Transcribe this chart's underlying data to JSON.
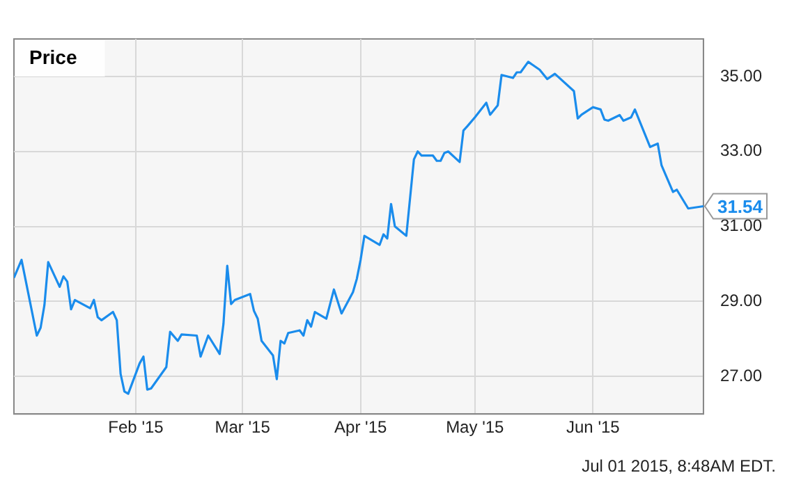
{
  "chart_data": {
    "type": "line",
    "title": "Price",
    "x": [
      "2014-12-31",
      "2015-01-02",
      "2015-01-06",
      "2015-01-07",
      "2015-01-08",
      "2015-01-09",
      "2015-01-12",
      "2015-01-13",
      "2015-01-14",
      "2015-01-15",
      "2015-01-16",
      "2015-01-20",
      "2015-01-21",
      "2015-01-22",
      "2015-01-23",
      "2015-01-26",
      "2015-01-27",
      "2015-01-28",
      "2015-01-29",
      "2015-01-30",
      "2015-02-02",
      "2015-02-03",
      "2015-02-04",
      "2015-02-05",
      "2015-02-09",
      "2015-02-10",
      "2015-02-12",
      "2015-02-13",
      "2015-02-17",
      "2015-02-18",
      "2015-02-20",
      "2015-02-23",
      "2015-02-24",
      "2015-02-25",
      "2015-02-26",
      "2015-02-27",
      "2015-03-03",
      "2015-03-04",
      "2015-03-05",
      "2015-03-06",
      "2015-03-09",
      "2015-03-10",
      "2015-03-11",
      "2015-03-12",
      "2015-03-13",
      "2015-03-16",
      "2015-03-17",
      "2015-03-18",
      "2015-03-19",
      "2015-03-20",
      "2015-03-23",
      "2015-03-25",
      "2015-03-27",
      "2015-03-30",
      "2015-03-31",
      "2015-04-01",
      "2015-04-02",
      "2015-04-06",
      "2015-04-07",
      "2015-04-08",
      "2015-04-09",
      "2015-04-10",
      "2015-04-13",
      "2015-04-15",
      "2015-04-16",
      "2015-04-17",
      "2015-04-20",
      "2015-04-21",
      "2015-04-22",
      "2015-04-23",
      "2015-04-24",
      "2015-04-27",
      "2015-04-28",
      "2015-04-29",
      "2015-05-01",
      "2015-05-04",
      "2015-05-05",
      "2015-05-07",
      "2015-05-08",
      "2015-05-11",
      "2015-05-12",
      "2015-05-13",
      "2015-05-15",
      "2015-05-18",
      "2015-05-20",
      "2015-05-21",
      "2015-05-22",
      "2015-05-27",
      "2015-05-28",
      "2015-05-29",
      "2015-06-01",
      "2015-06-03",
      "2015-06-04",
      "2015-06-05",
      "2015-06-08",
      "2015-06-09",
      "2015-06-11",
      "2015-06-12",
      "2015-06-16",
      "2015-06-18",
      "2015-06-19",
      "2015-06-22",
      "2015-06-23",
      "2015-06-26",
      "2015-06-30"
    ],
    "series": [
      {
        "color": "#1a8cec",
        "values": [
          29.63,
          30.11,
          28.09,
          28.3,
          28.9,
          30.05,
          29.39,
          29.67,
          29.53,
          28.79,
          29.04,
          28.82,
          29.04,
          28.58,
          28.5,
          28.72,
          28.5,
          27.07,
          26.6,
          26.54,
          27.35,
          27.53,
          26.65,
          26.68,
          27.25,
          28.19,
          27.95,
          28.12,
          28.09,
          27.53,
          28.09,
          27.6,
          28.4,
          29.95,
          28.93,
          29.04,
          29.2,
          28.75,
          28.54,
          27.95,
          27.56,
          26.93,
          27.95,
          27.88,
          28.16,
          28.23,
          28.09,
          28.5,
          28.33,
          28.72,
          28.54,
          29.32,
          28.68,
          29.25,
          29.6,
          30.11,
          30.75,
          30.51,
          30.79,
          30.68,
          31.6,
          31.0,
          30.75,
          32.79,
          33.0,
          32.89,
          32.89,
          32.75,
          32.75,
          32.96,
          33.0,
          32.72,
          33.56,
          33.67,
          33.91,
          34.3,
          33.98,
          34.23,
          35.04,
          34.96,
          35.11,
          35.11,
          35.39,
          35.18,
          34.93,
          35.0,
          35.07,
          34.61,
          33.88,
          33.98,
          34.18,
          34.12,
          33.85,
          33.82,
          33.97,
          33.82,
          33.91,
          34.12,
          33.12,
          33.21,
          32.63,
          31.92,
          31.98,
          31.48,
          31.54
        ],
        "value_labels": [
          null,
          null,
          null,
          null,
          null,
          null,
          null,
          null,
          null,
          null,
          null,
          null,
          null,
          null,
          null,
          null,
          null,
          null,
          null,
          null,
          null,
          null,
          null,
          null,
          null,
          null,
          null,
          null,
          null,
          null,
          null,
          null,
          null,
          null,
          null,
          null,
          null,
          null,
          null,
          null,
          null,
          null,
          null,
          null,
          null,
          null,
          null,
          null,
          null,
          null,
          null,
          null,
          null,
          null,
          null,
          null,
          null,
          null,
          null,
          null,
          null,
          null,
          null,
          null,
          null,
          null,
          null,
          null,
          null,
          null,
          null,
          null,
          null,
          null,
          null,
          null,
          null,
          null,
          null,
          null,
          null,
          null,
          null,
          null,
          null,
          null,
          null,
          null,
          null,
          null,
          null,
          null,
          null,
          null,
          null,
          null,
          null,
          null,
          null,
          null,
          null,
          null,
          null,
          null,
          "31.54"
        ]
      }
    ],
    "xlim": [
      "2014-12-31",
      "2015-06-30"
    ],
    "xticks": [
      {
        "value": "2015-02-01",
        "label": "Feb '15"
      },
      {
        "value": "2015-03-01",
        "label": "Mar '15"
      },
      {
        "value": "2015-04-01",
        "label": "Apr '15"
      },
      {
        "value": "2015-05-01",
        "label": "May '15"
      },
      {
        "value": "2015-06-01",
        "label": "Jun '15"
      }
    ],
    "ylim": [
      26,
      36
    ],
    "yticks": [
      {
        "value": 27,
        "label": "27.00"
      },
      {
        "value": 29,
        "label": "29.00"
      },
      {
        "value": 31,
        "label": "31.00"
      },
      {
        "value": 33,
        "label": "33.00"
      },
      {
        "value": 35,
        "label": "35.00"
      }
    ],
    "grid": true,
    "legend": false,
    "marker": "none",
    "line_style": "solid",
    "annotations": [
      "Jul 01 2015, 8:48AM EDT."
    ]
  }
}
